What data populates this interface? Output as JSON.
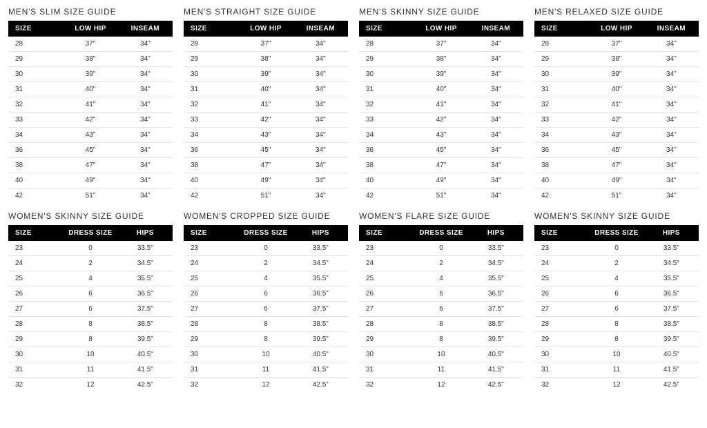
{
  "styling": {
    "background_color": "#ffffff",
    "header_bg": "#000000",
    "header_text_color": "#ffffff",
    "cell_text_color": "#333333",
    "border_color": "#e5e5e5",
    "title_font_size": 12,
    "header_font_size": 10,
    "cell_font_size": 10,
    "grid_columns": 4
  },
  "mens_columns": [
    "SIZE",
    "LOW HIP",
    "INSEAM"
  ],
  "womens_columns": [
    "SIZE",
    "DRESS SIZE",
    "HIPS"
  ],
  "mens_rows": [
    [
      "28",
      "37\"",
      "34\""
    ],
    [
      "29",
      "38\"",
      "34\""
    ],
    [
      "30",
      "39\"",
      "34\""
    ],
    [
      "31",
      "40\"",
      "34\""
    ],
    [
      "32",
      "41\"",
      "34\""
    ],
    [
      "33",
      "42\"",
      "34\""
    ],
    [
      "34",
      "43\"",
      "34\""
    ],
    [
      "36",
      "45\"",
      "34\""
    ],
    [
      "38",
      "47\"",
      "34\""
    ],
    [
      "40",
      "49\"",
      "34\""
    ],
    [
      "42",
      "51\"",
      "34\""
    ]
  ],
  "womens_rows": [
    [
      "23",
      "0",
      "33.5\""
    ],
    [
      "24",
      "2",
      "34.5\""
    ],
    [
      "25",
      "4",
      "35.5\""
    ],
    [
      "26",
      "6",
      "36.5\""
    ],
    [
      "27",
      "6",
      "37.5\""
    ],
    [
      "28",
      "8",
      "38.5\""
    ],
    [
      "29",
      "8",
      "39.5\""
    ],
    [
      "30",
      "10",
      "40.5\""
    ],
    [
      "31",
      "11",
      "41.5\""
    ],
    [
      "32",
      "12",
      "42.5\""
    ]
  ],
  "guides": [
    {
      "title": "MEN'S SLIM SIZE GUIDE",
      "columns_ref": "mens_columns",
      "rows_ref": "mens_rows"
    },
    {
      "title": "MEN'S STRAIGHT SIZE GUIDE",
      "columns_ref": "mens_columns",
      "rows_ref": "mens_rows"
    },
    {
      "title": "MEN'S SKINNY SIZE GUIDE",
      "columns_ref": "mens_columns",
      "rows_ref": "mens_rows"
    },
    {
      "title": "MEN'S RELAXED SIZE GUIDE",
      "columns_ref": "mens_columns",
      "rows_ref": "mens_rows"
    },
    {
      "title": "WOMEN'S SKINNY SIZE GUIDE",
      "columns_ref": "womens_columns",
      "rows_ref": "womens_rows"
    },
    {
      "title": "WOMEN'S CROPPED SIZE GUIDE",
      "columns_ref": "womens_columns",
      "rows_ref": "womens_rows"
    },
    {
      "title": "WOMEN'S FLARE SIZE GUIDE",
      "columns_ref": "womens_columns",
      "rows_ref": "womens_rows"
    },
    {
      "title": "WOMEN'S SKINNY SIZE GUIDE",
      "columns_ref": "womens_columns",
      "rows_ref": "womens_rows"
    }
  ]
}
